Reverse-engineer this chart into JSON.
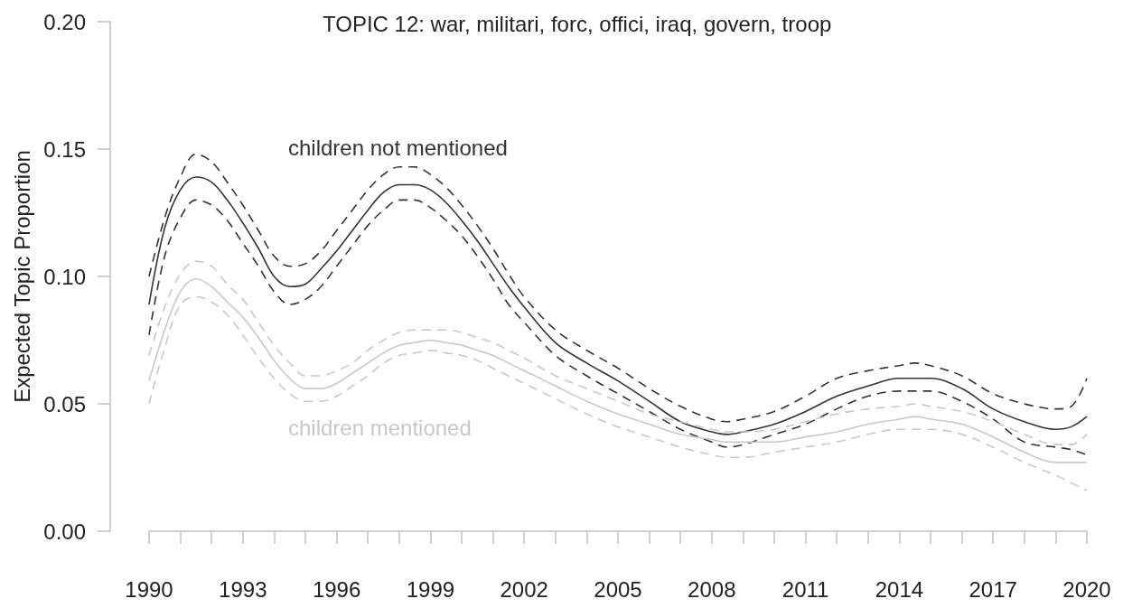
{
  "chart_data": {
    "type": "line",
    "title": "TOPIC 12: war, militari, forc, offici, iraq, govern, troop",
    "ylabel": "Expected Topic Proportion",
    "x": [
      1990,
      1990.5,
      1991,
      1991.5,
      1992,
      1992.5,
      1993,
      1993.5,
      1994,
      1994.5,
      1995,
      1995.5,
      1996,
      1996.5,
      1997,
      1997.5,
      1998,
      1998.5,
      1999,
      1999.5,
      2000,
      2000.5,
      2001,
      2001.5,
      2002,
      2003,
      2004,
      2005,
      2006,
      2007,
      2008,
      2008.5,
      2009,
      2010,
      2011,
      2012,
      2013,
      2014,
      2014.5,
      2015,
      2016,
      2017,
      2018,
      2019,
      2019.5,
      2020
    ],
    "series": [
      {
        "name": "children not mentioned",
        "color": "#333333",
        "values": [
          0.089,
          0.119,
          0.134,
          0.139,
          0.137,
          0.13,
          0.121,
          0.111,
          0.1,
          0.096,
          0.097,
          0.103,
          0.11,
          0.118,
          0.126,
          0.133,
          0.136,
          0.136,
          0.134,
          0.129,
          0.122,
          0.114,
          0.105,
          0.096,
          0.088,
          0.074,
          0.066,
          0.059,
          0.051,
          0.043,
          0.039,
          0.038,
          0.039,
          0.042,
          0.047,
          0.053,
          0.057,
          0.06,
          0.06,
          0.06,
          0.056,
          0.048,
          0.043,
          0.04,
          0.041,
          0.045
        ]
      },
      {
        "color": "#333333",
        "line_style": "dashed",
        "values": [
          0.1,
          0.123,
          0.139,
          0.148,
          0.145,
          0.137,
          0.128,
          0.118,
          0.108,
          0.104,
          0.105,
          0.11,
          0.118,
          0.126,
          0.134,
          0.14,
          0.143,
          0.143,
          0.14,
          0.135,
          0.128,
          0.12,
          0.111,
          0.101,
          0.092,
          0.079,
          0.071,
          0.064,
          0.056,
          0.049,
          0.044,
          0.043,
          0.044,
          0.047,
          0.053,
          0.06,
          0.063,
          0.065,
          0.066,
          0.065,
          0.061,
          0.054,
          0.05,
          0.048,
          0.049,
          0.06
        ]
      },
      {
        "color": "#333333",
        "line_style": "dashed",
        "values": [
          0.077,
          0.108,
          0.123,
          0.13,
          0.128,
          0.122,
          0.113,
          0.104,
          0.094,
          0.089,
          0.091,
          0.096,
          0.104,
          0.112,
          0.12,
          0.126,
          0.13,
          0.13,
          0.127,
          0.122,
          0.116,
          0.108,
          0.099,
          0.089,
          0.082,
          0.069,
          0.061,
          0.054,
          0.047,
          0.04,
          0.035,
          0.033,
          0.034,
          0.038,
          0.042,
          0.048,
          0.053,
          0.055,
          0.055,
          0.055,
          0.051,
          0.044,
          0.035,
          0.033,
          0.032,
          0.03
        ]
      },
      {
        "name": "children mentioned",
        "color": "#c8c8c8",
        "values": [
          0.059,
          0.079,
          0.094,
          0.099,
          0.096,
          0.09,
          0.084,
          0.076,
          0.067,
          0.06,
          0.056,
          0.056,
          0.058,
          0.062,
          0.066,
          0.07,
          0.073,
          0.074,
          0.075,
          0.074,
          0.073,
          0.071,
          0.069,
          0.066,
          0.063,
          0.057,
          0.051,
          0.046,
          0.042,
          0.038,
          0.036,
          0.035,
          0.035,
          0.035,
          0.037,
          0.039,
          0.042,
          0.044,
          0.045,
          0.044,
          0.042,
          0.037,
          0.031,
          0.027,
          0.027,
          0.027
        ]
      },
      {
        "color": "#c8c8c8",
        "line_style": "dashed",
        "values": [
          0.069,
          0.088,
          0.101,
          0.106,
          0.104,
          0.097,
          0.091,
          0.082,
          0.073,
          0.066,
          0.061,
          0.061,
          0.063,
          0.066,
          0.071,
          0.075,
          0.078,
          0.079,
          0.079,
          0.079,
          0.078,
          0.076,
          0.074,
          0.071,
          0.068,
          0.061,
          0.056,
          0.051,
          0.046,
          0.043,
          0.04,
          0.039,
          0.039,
          0.04,
          0.043,
          0.046,
          0.048,
          0.049,
          0.05,
          0.049,
          0.047,
          0.043,
          0.038,
          0.034,
          0.034,
          0.038
        ]
      },
      {
        "color": "#c8c8c8",
        "line_style": "dashed",
        "values": [
          0.05,
          0.072,
          0.089,
          0.092,
          0.09,
          0.085,
          0.077,
          0.068,
          0.06,
          0.054,
          0.051,
          0.051,
          0.053,
          0.057,
          0.061,
          0.066,
          0.069,
          0.07,
          0.071,
          0.07,
          0.069,
          0.067,
          0.064,
          0.061,
          0.058,
          0.052,
          0.046,
          0.041,
          0.037,
          0.033,
          0.03,
          0.029,
          0.029,
          0.031,
          0.033,
          0.035,
          0.038,
          0.04,
          0.04,
          0.04,
          0.038,
          0.033,
          0.027,
          0.022,
          0.019,
          0.016
        ]
      }
    ],
    "xlim": [
      1990,
      2020
    ],
    "xticks": [
      1990,
      {
        "value": 1991,
        "label": null
      },
      {
        "value": 1992,
        "label": null
      },
      1993,
      {
        "value": 1994,
        "label": null
      },
      {
        "value": 1995,
        "label": null
      },
      1996,
      {
        "value": 1997,
        "label": null
      },
      {
        "value": 1998,
        "label": null
      },
      1999,
      {
        "value": 2000,
        "label": null
      },
      {
        "value": 2001,
        "label": null
      },
      2002,
      {
        "value": 2003,
        "label": null
      },
      {
        "value": 2004,
        "label": null
      },
      2005,
      {
        "value": 2006,
        "label": null
      },
      {
        "value": 2007,
        "label": null
      },
      2008,
      {
        "value": 2009,
        "label": null
      },
      {
        "value": 2010,
        "label": null
      },
      2011,
      {
        "value": 2012,
        "label": null
      },
      {
        "value": 2013,
        "label": null
      },
      2014,
      {
        "value": 2015,
        "label": null
      },
      {
        "value": 2016,
        "label": null
      },
      2017,
      {
        "value": 2018,
        "label": null
      },
      {
        "value": 2019,
        "label": null
      },
      2020
    ],
    "ylim": [
      0,
      0.2
    ],
    "yticks": [
      {
        "value": 0,
        "label": "0.00"
      },
      0.05,
      {
        "value": 0.1,
        "label": "0.10"
      },
      0.15,
      {
        "value": 0.2,
        "label": "0.20"
      }
    ],
    "grid": false,
    "legend": false,
    "marker": "none",
    "line_style": "solid"
  }
}
